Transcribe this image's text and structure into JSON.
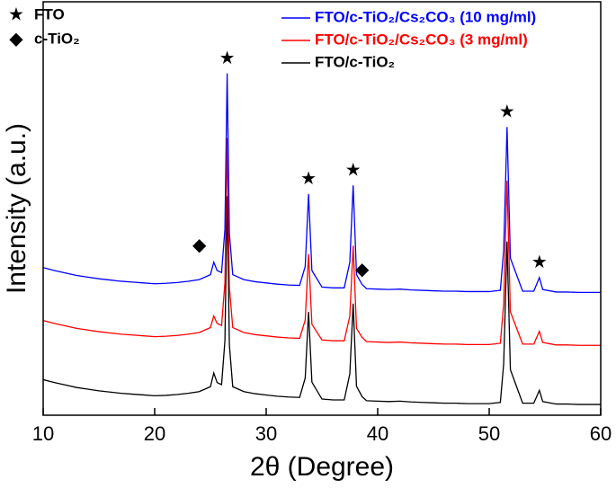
{
  "chart_data": {
    "type": "line",
    "xlabel": "2θ (Degree)",
    "ylabel": "Intensity (a.u.)",
    "x": [
      10,
      11,
      12,
      13,
      14,
      15,
      16,
      17,
      18,
      19,
      20,
      21,
      22,
      23,
      24,
      25,
      25.3,
      25.6,
      26,
      26.3,
      26.5,
      26.7,
      27,
      28,
      29,
      30,
      31,
      32,
      33,
      33.5,
      33.8,
      34.1,
      35,
      36,
      37,
      37.5,
      37.8,
      38.1,
      38.6,
      39,
      40,
      41,
      42,
      43,
      44,
      45,
      46,
      47,
      48,
      49,
      50,
      51,
      51.3,
      51.6,
      51.9,
      53,
      54,
      54.5,
      54.8,
      56,
      57,
      58,
      59,
      60
    ],
    "series": [
      {
        "name": "FTO/c-TiO₂/Cs₂CO₃ (10 mg/ml)",
        "color": "#0000ff",
        "values": [
          35.7,
          35.0,
          34.4,
          33.8,
          33.4,
          33.0,
          32.7,
          32.4,
          32.2,
          32.0,
          31.8,
          31.9,
          32.1,
          32.4,
          32.8,
          34.0,
          37.0,
          35.0,
          34.5,
          45,
          82.7,
          44,
          34.0,
          32.8,
          32.3,
          32.0,
          31.7,
          31.5,
          31.4,
          36,
          53.5,
          35,
          31.0,
          30.8,
          30.8,
          37,
          55.6,
          34,
          31.6,
          30.6,
          30.5,
          30.4,
          30.5,
          30.3,
          30.2,
          30.1,
          30.0,
          30.0,
          29.9,
          29.9,
          29.9,
          30.2,
          40,
          69.7,
          38,
          30.0,
          30.0,
          33.3,
          30.4,
          29.8,
          29.8,
          29.7,
          29.7,
          29.7
        ]
      },
      {
        "name": "FTO/c-TiO₂/Cs₂CO₃  (3 mg/ml)",
        "color": "#ff0000",
        "values": [
          22.9,
          22.2,
          21.6,
          21.0,
          20.6,
          20.2,
          19.9,
          19.6,
          19.4,
          19.2,
          19.0,
          19.1,
          19.3,
          19.6,
          20.0,
          21.2,
          24.0,
          22.2,
          21.7,
          32,
          67,
          31,
          21.2,
          20.0,
          19.5,
          19.2,
          18.9,
          18.7,
          18.6,
          23,
          39,
          22,
          18.2,
          18.0,
          18.0,
          24,
          41,
          21,
          18.8,
          17.8,
          17.7,
          17.6,
          17.7,
          17.5,
          17.4,
          17.3,
          17.2,
          17.2,
          17.1,
          17.1,
          17.1,
          17.4,
          27,
          56.7,
          25,
          17.2,
          17.2,
          20.3,
          17.6,
          17.0,
          17.0,
          16.9,
          16.9,
          16.9
        ]
      },
      {
        "name": "FTO/c-TiO₂",
        "color": "#000000",
        "values": [
          8.6,
          7.9,
          7.3,
          6.7,
          6.3,
          5.9,
          5.6,
          5.3,
          5.1,
          4.9,
          4.7,
          4.8,
          5.0,
          5.3,
          5.7,
          6.9,
          10.2,
          7.9,
          7.4,
          18,
          53,
          17,
          6.9,
          5.7,
          5.2,
          4.9,
          4.6,
          4.4,
          4.3,
          9,
          25,
          8,
          3.9,
          3.7,
          3.7,
          10,
          27,
          7,
          4.5,
          3.5,
          3.4,
          3.3,
          3.4,
          3.2,
          3.1,
          3.0,
          2.9,
          2.9,
          2.8,
          2.8,
          2.8,
          3.1,
          12.5,
          42,
          11,
          2.9,
          2.9,
          6,
          3.3,
          2.7,
          2.7,
          2.6,
          2.6,
          2.6
        ]
      }
    ],
    "xlim": [
      10,
      60
    ],
    "xticks": [
      10,
      20,
      30,
      40,
      50,
      60
    ],
    "ylim": [
      0,
      100
    ],
    "marker_legend": [
      {
        "symbol": "★",
        "label": "FTO"
      },
      {
        "symbol": "◆",
        "label": "c-TiO₂"
      }
    ],
    "annotations": [
      {
        "text": "★",
        "x": 26.5
      },
      {
        "text": "★",
        "x": 33.8
      },
      {
        "text": "★",
        "x": 37.8
      },
      {
        "text": "★",
        "x": 51.6
      },
      {
        "text": "★",
        "x": 54.5
      },
      {
        "text": "◆",
        "x": 25.3
      },
      {
        "text": "◆",
        "x": 38.6
      }
    ]
  }
}
